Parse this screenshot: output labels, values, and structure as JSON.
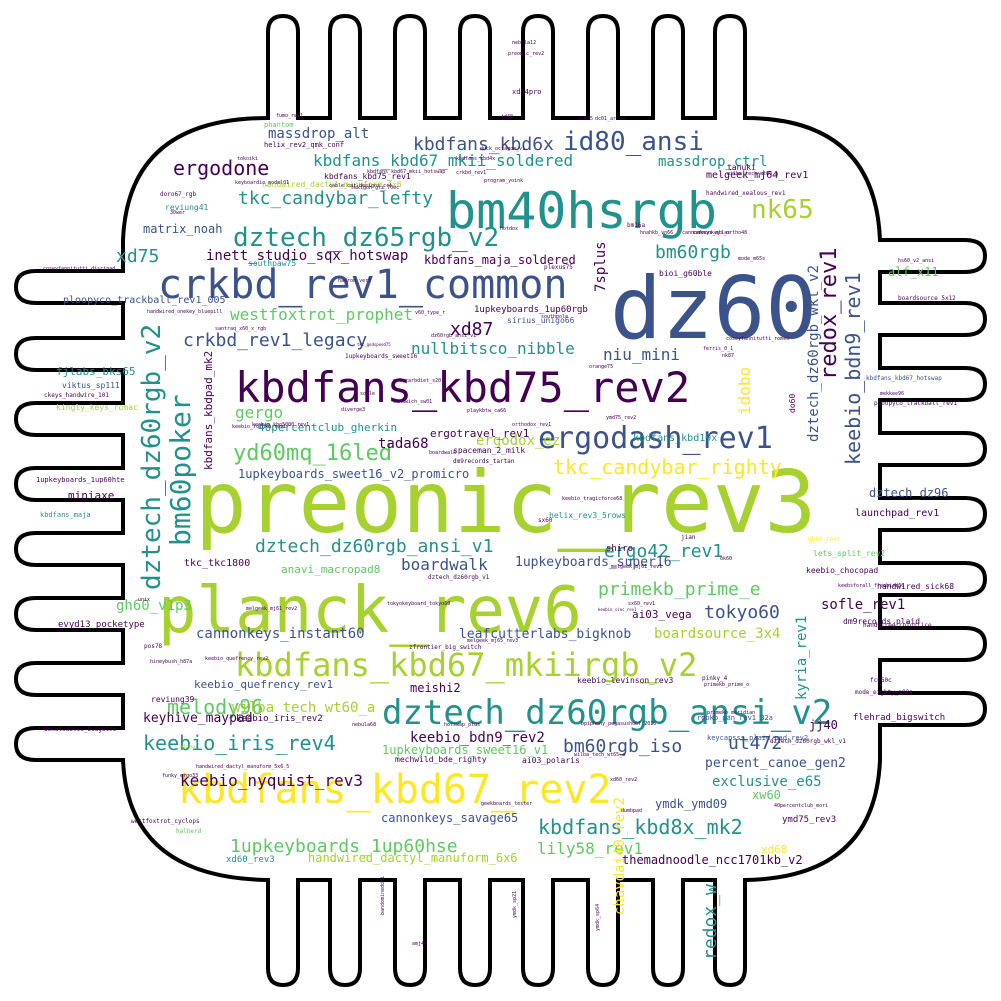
{
  "palette": {
    "background": "#ffffff",
    "outline": "#000000",
    "viridis": [
      "#440154",
      "#3b528b",
      "#21918c",
      "#5ec962",
      "#a6d12f",
      "#fde725"
    ]
  },
  "shape": {
    "name": "microchip-outline"
  },
  "words": [
    {
      "text": "preonic_rev3"
    },
    {
      "text": "dz60"
    },
    {
      "text": "planck_rev6"
    },
    {
      "text": "bm40hsrgb"
    },
    {
      "text": "kbdfans_kbd75_rev2"
    },
    {
      "text": "crkbd_rev1_common"
    },
    {
      "text": "kbdfans_kbd67_rev2"
    },
    {
      "text": "dztech_dz60rgb_ansi_v2"
    },
    {
      "text": "kbdfans_kbd67_mkiirgb_v2"
    },
    {
      "text": "ergodash_rev1"
    },
    {
      "text": "dztech_dz65rgb_v2"
    },
    {
      "text": "id80_ansi"
    },
    {
      "text": "bm60poker"
    },
    {
      "text": "dztech_dz60rgb_v2"
    },
    {
      "text": "nk65"
    },
    {
      "text": "keebio_iris_rev4"
    },
    {
      "text": "yd60mq_16led"
    },
    {
      "text": "kbdfans_kbd6x"
    },
    {
      "text": "ergodone"
    },
    {
      "text": "tkc_candybar_righty"
    },
    {
      "text": "kbdfans_kbd67_mkii_soldered"
    },
    {
      "text": "redox_rev1"
    },
    {
      "text": "keebio_bdn9_rev1"
    },
    {
      "text": "dztech_dz60rgb_ansi_v1"
    },
    {
      "text": "melody96"
    },
    {
      "text": "tkc_candybar_lefty"
    },
    {
      "text": "kbdfans_kbd8x_mk2"
    },
    {
      "text": "primekb_prime_e"
    },
    {
      "text": "crkbd_rev1_legacy"
    },
    {
      "text": "bm60rgb"
    },
    {
      "text": "ergo42_rev1"
    },
    {
      "text": "1upkeyboards_1up60hse"
    },
    {
      "text": "tokyo60"
    },
    {
      "text": "bm60rgb_iso"
    },
    {
      "text": "ut472"
    },
    {
      "text": "keebio_nyquist_rev3"
    },
    {
      "text": "westfoxtrot_prophet"
    },
    {
      "text": "nullbitsco_nibble"
    },
    {
      "text": "xd87"
    },
    {
      "text": "niu_mini"
    },
    {
      "text": "massdrop_ctrl"
    },
    {
      "text": "xd75"
    },
    {
      "text": "redox_w"
    },
    {
      "text": "gergo"
    },
    {
      "text": "kyria_rev1"
    },
    {
      "text": "lily58_rev1"
    },
    {
      "text": "exclusive_e65"
    },
    {
      "text": "sofle_rev1"
    },
    {
      "text": "idobo"
    },
    {
      "text": "boardwalk"
    },
    {
      "text": "tada68"
    },
    {
      "text": "ergodox_ez"
    },
    {
      "text": "dztech_dz60rgb_wkl_v2"
    },
    {
      "text": "inett_studio_sqx_hotswap"
    },
    {
      "text": "7splus"
    },
    {
      "text": "massdrop_alt"
    },
    {
      "text": "chavdai40_rev2"
    },
    {
      "text": "boardsource_3x4"
    },
    {
      "text": "cannonkeys_instant60"
    },
    {
      "text": "keebio_bdn9_rev2"
    },
    {
      "text": "gh60_v1p3"
    },
    {
      "text": "wilba_tech_wt60_a"
    },
    {
      "text": "percent_canoe_gen2"
    },
    {
      "text": "leafcutterlabs_bigknob"
    },
    {
      "text": "keyhive_maypad"
    },
    {
      "text": "1upkeyboards_super16"
    },
    {
      "text": "kbdfans_maja_soldered"
    },
    {
      "text": "matrix_noah"
    },
    {
      "text": "alf_x11"
    },
    {
      "text": "dztech_dz96"
    },
    {
      "text": "cannonkeys_savage65"
    },
    {
      "text": "1upkeyboards_sweet16_v1"
    },
    {
      "text": "handwired_dactyl_manuform_6x6"
    },
    {
      "text": "themadnoodle_ncc1701kb_v2"
    },
    {
      "text": "ymdk_ymd09"
    },
    {
      "text": "xw60"
    },
    {
      "text": "keebio_quefrency_rev1"
    },
    {
      "text": "anavi_macropad8"
    },
    {
      "text": "meishi2"
    },
    {
      "text": "melgeek_mj64_rev1"
    },
    {
      "text": "kbdfans_kbd19x"
    },
    {
      "text": "1upkeyboards_sweet16_v2_promicro"
    },
    {
      "text": "ergotravel_rev1"
    },
    {
      "text": "40percentclub_gherkin"
    },
    {
      "text": "kbdfans_kbdpad_mk2"
    },
    {
      "text": "fjlabs_bks65"
    },
    {
      "text": "miniaxe"
    },
    {
      "text": "evyd13_pocketype"
    },
    {
      "text": "ploopyco_trackball_rev1_005"
    },
    {
      "text": "jj40"
    },
    {
      "text": "launchpad_rev1"
    },
    {
      "text": "xd68"
    },
    {
      "text": "ai03_vega"
    },
    {
      "text": "tkc_tkc1800"
    },
    {
      "text": "ymd75_rev3"
    },
    {
      "text": "do60"
    },
    {
      "text": "kingly_keys_romac"
    },
    {
      "text": "1upkeyboards_1up60rgb"
    },
    {
      "text": "mechwild_bde_righty"
    },
    {
      "text": "keebio_iris_rev2"
    },
    {
      "text": "helix_rev3_5rows"
    },
    {
      "text": "keebio_chocopad"
    },
    {
      "text": "flehrad_bigswitch"
    },
    {
      "text": "handwired_sick68"
    },
    {
      "text": "lets_split_rev2"
    },
    {
      "text": "dm9records_plaid"
    },
    {
      "text": "shiro"
    },
    {
      "text": "xd60_rev3"
    },
    {
      "text": "viktus_sp111"
    },
    {
      "text": "kbdfans_maja"
    },
    {
      "text": "handwired_dactyl_manuform_4x6"
    },
    {
      "text": "southpaw75"
    },
    {
      "text": "bioi_g60ble"
    },
    {
      "text": "sirius_unigo66"
    },
    {
      "text": "spaceman_2_milk"
    },
    {
      "text": "reviung39"
    },
    {
      "text": "reviung41"
    },
    {
      "text": "dm9records_tartan"
    },
    {
      "text": "keebio_levinson_rev3"
    },
    {
      "text": "ai03_polaris"
    },
    {
      "text": "rgbkb_pan_rev1_32a"
    },
    {
      "text": "keycapsss_plaid_pad_rev2"
    },
    {
      "text": "westfoxtrot_cyclops"
    },
    {
      "text": "donutcables_budget96"
    },
    {
      "text": "mode_eighty_m80s"
    },
    {
      "text": "handwired_colorlice"
    },
    {
      "text": "kbdfans_kbd67_hotswap"
    },
    {
      "text": "ploopyco_trackball_rev1"
    },
    {
      "text": "boardsource_5x12"
    },
    {
      "text": "hs60_v2_ansi"
    },
    {
      "text": "cannonkeys_ortho48"
    },
    {
      "text": "handwired_xealous_rev1"
    },
    {
      "text": "tanuki"
    },
    {
      "text": "wilba_tech_wt60_a"
    },
    {
      "text": "helix_rev2_qmk_conf"
    },
    {
      "text": "keyboardio_model01"
    },
    {
      "text": "1upkeyboards_1up60hte"
    },
    {
      "text": "coseyfannitutti_discipad"
    },
    {
      "text": "handwired_onekey_bluepill"
    },
    {
      "text": "santraq_x60_x_rgb"
    },
    {
      "text": "dz60rgb_ansi_v1"
    },
    {
      "text": "xd84pro"
    },
    {
      "text": "preonic_rev2"
    },
    {
      "text": "nebula12"
    },
    {
      "text": "primekb_meridian"
    },
    {
      "text": "halberd"
    },
    {
      "text": "funky_ergo33"
    },
    {
      "text": "amj40"
    },
    {
      "text": "pinky_4"
    },
    {
      "text": "zfrontier_big_switch"
    },
    {
      "text": "geekboards_tester"
    },
    {
      "text": "dumbpad"
    },
    {
      "text": "40percentclub_mori"
    },
    {
      "text": "hineybush_h87a"
    },
    {
      "text": "pos78"
    },
    {
      "text": "fc660c"
    },
    {
      "text": "keebsforall_freebird60"
    },
    {
      "text": "mekkee96"
    },
    {
      "text": "coseyfannitutti_romeo"
    },
    {
      "text": "ferris_0_1"
    },
    {
      "text": "nk87"
    },
    {
      "text": "orange75"
    },
    {
      "text": "diverge3"
    },
    {
      "text": "ymd75_rev2"
    },
    {
      "text": "orthodox_rev1"
    },
    {
      "text": "gh60_revc"
    },
    {
      "text": "keebio_foldkb_rev1"
    },
    {
      "text": "tkc_godspeed75"
    },
    {
      "text": "xd60_rev2"
    },
    {
      "text": "bpiphany_pegasushoof_2015"
    },
    {
      "text": "nebula68"
    },
    {
      "text": "hotswap_plus"
    },
    {
      "text": "cannonkeys_atlas"
    },
    {
      "text": "plexus75"
    },
    {
      "text": "bm16a"
    },
    {
      "text": "doro67_rgb"
    },
    {
      "text": "program_yoink"
    },
    {
      "text": "tokoiki"
    },
    {
      "text": "jian"
    },
    {
      "text": "sx60"
    },
    {
      "text": "unix"
    },
    {
      "text": "ymdk_sp64"
    },
    {
      "text": "ymdk_sp21"
    },
    {
      "text": "bandominedoni"
    },
    {
      "text": "dc01_arrow"
    },
    {
      "text": "duck_octagon_v1"
    },
    {
      "text": "melgeek_mj61_rev2"
    },
    {
      "text": "dztech_dz60rgb_v1"
    },
    {
      "text": "sx60_rev1"
    },
    {
      "text": "keebio_kbo5000_rev1"
    },
    {
      "text": "keebio_tragicforce68"
    },
    {
      "text": "melgeek_mj65_rev3"
    },
    {
      "text": "melgeek_mj61_rev1"
    },
    {
      "text": "primekb_prime_o"
    },
    {
      "text": "keebio_sinc_rev1"
    },
    {
      "text": "kbdfans_kbd4x"
    },
    {
      "text": "jd40"
    },
    {
      "text": "fumo_rev1"
    },
    {
      "text": "lck75"
    },
    {
      "text": "30wer"
    },
    {
      "text": "southpole"
    },
    {
      "text": "v60_type_r"
    },
    {
      "text": "phantom"
    },
    {
      "text": "cable_car_designs_cct"
    },
    {
      "text": "crkbd_rev1"
    },
    {
      "text": "kbdfans_kbd75_rev1"
    },
    {
      "text": "ckeys_handwire_101"
    },
    {
      "text": "boardwalk"
    },
    {
      "text": "1upkeyboards_sweet16"
    },
    {
      "text": "wilba_tech_wt65_a"
    },
    {
      "text": "hnahkb_vn66"
    },
    {
      "text": "sekigon_grs_70ec"
    },
    {
      "text": "kbdfans_kbd67_mkii_hotswap"
    },
    {
      "text": "handwired_dactyl_manuform_5x6_5"
    },
    {
      "text": "dztech_dz60rgb_wkl_v1"
    },
    {
      "text": "tokyokeyboard_tokyo60"
    },
    {
      "text": "ok60"
    },
    {
      "text": "polycarbdiet_s20"
    },
    {
      "text": "playkbtw_ca66"
    },
    {
      "text": "sofle"
    },
    {
      "text": "hotdox"
    },
    {
      "text": "sandwich_sw01"
    },
    {
      "text": "keebio_quefrency_rev2"
    },
    {
      "text": "hadron_ver3"
    },
    {
      "text": "mode_m65s"
    },
    {
      "text": "alpha"
    }
  ]
}
